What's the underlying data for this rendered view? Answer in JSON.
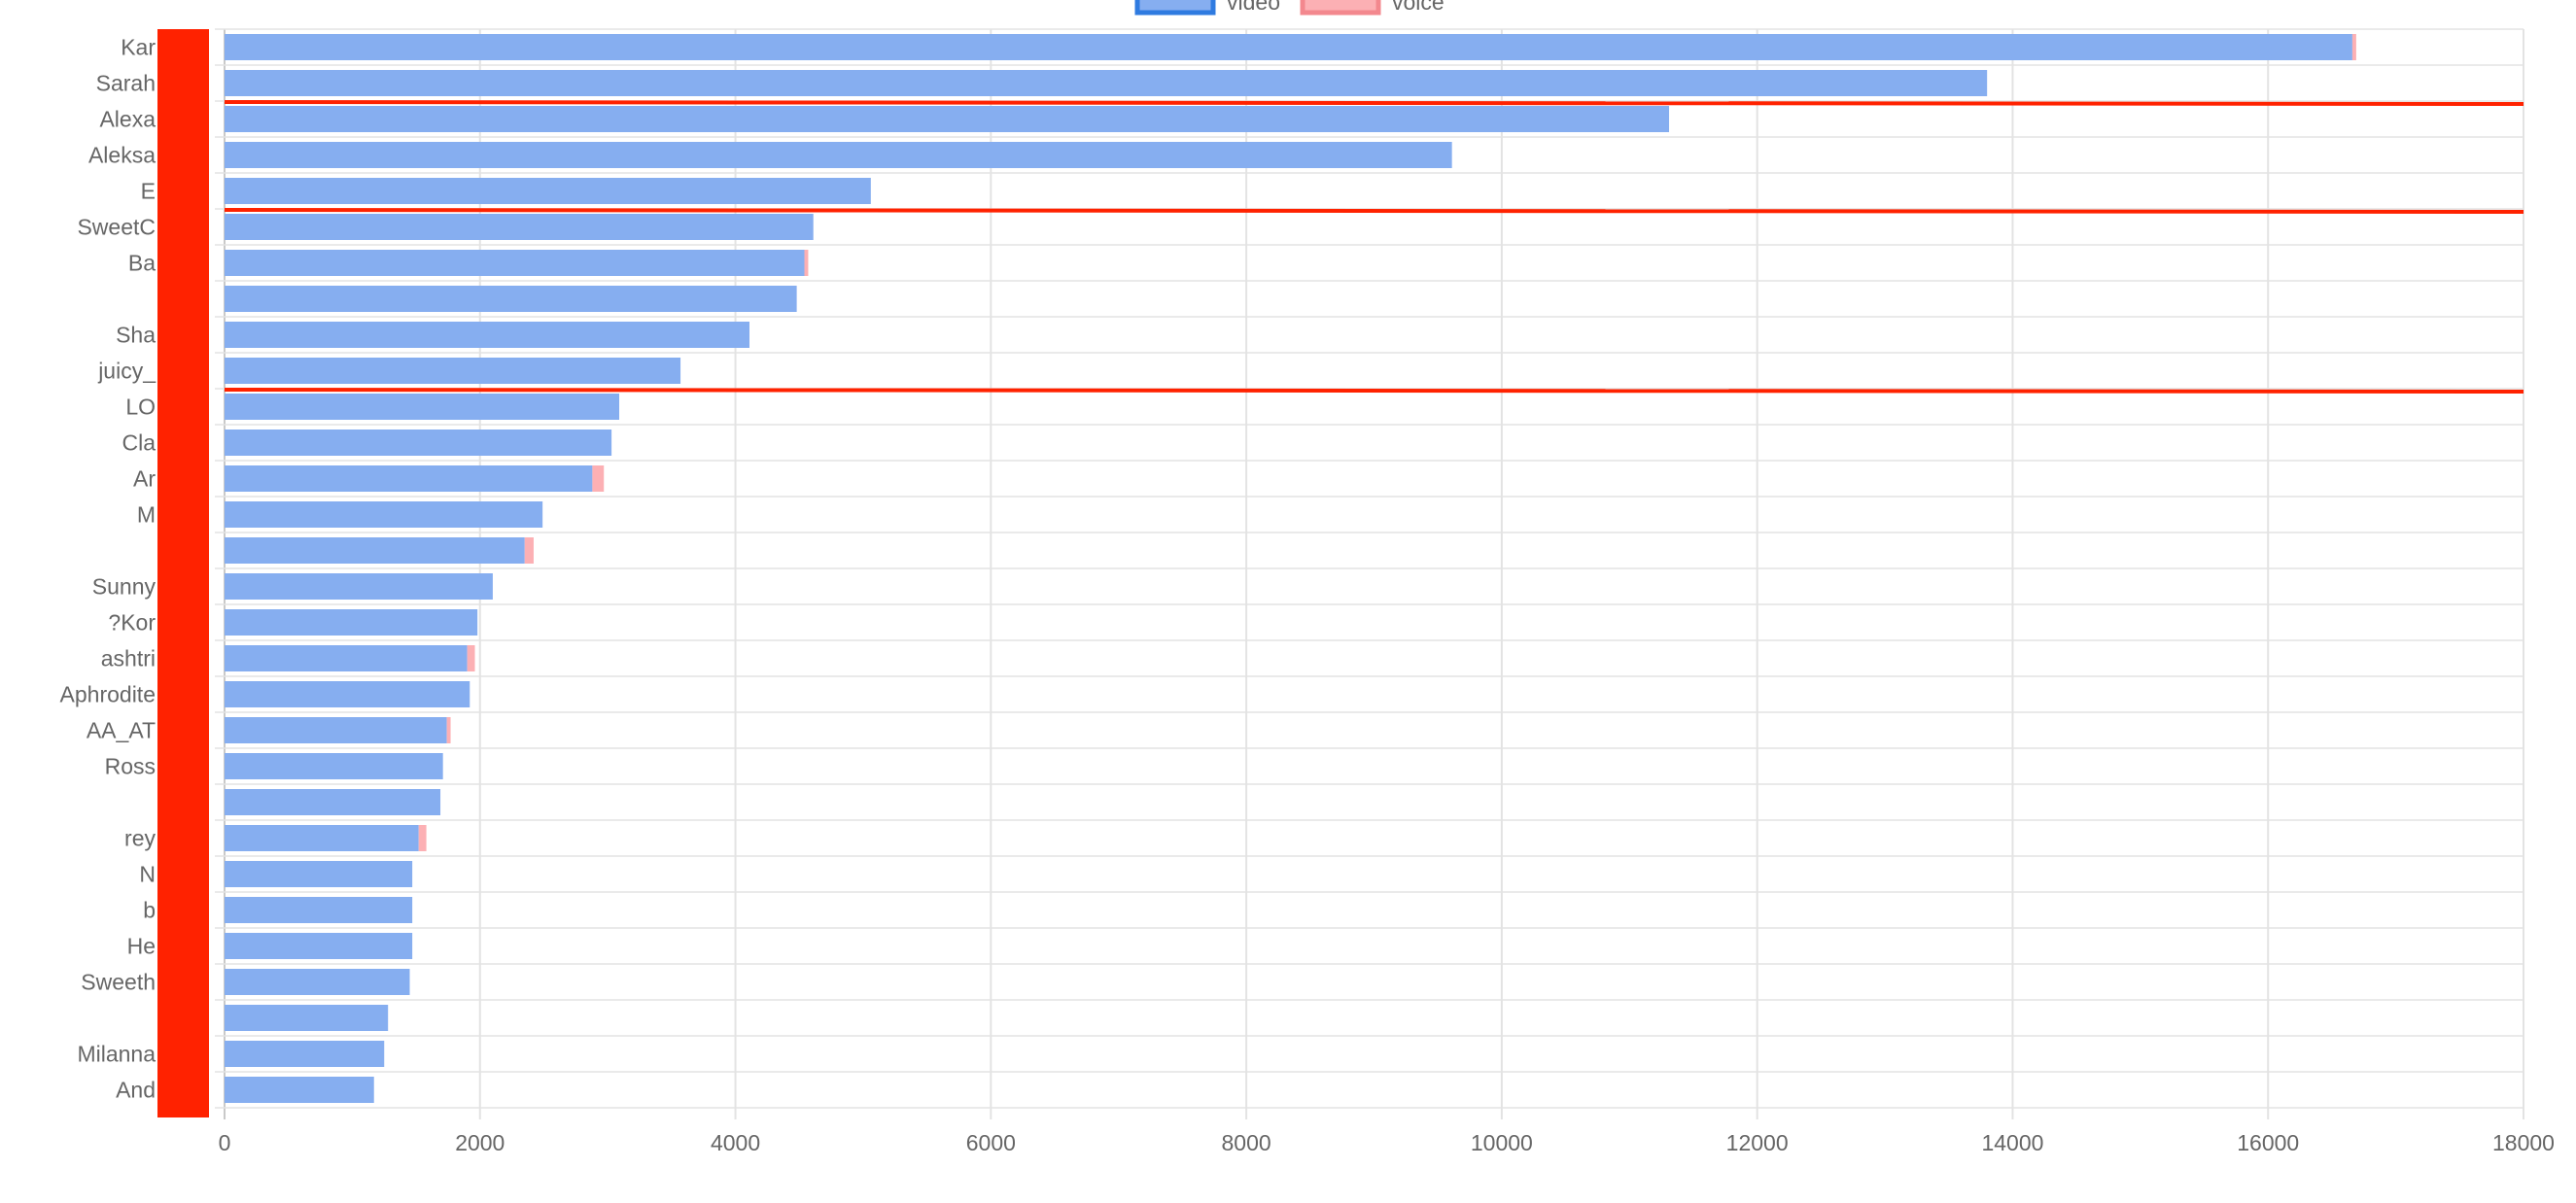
{
  "legend": [
    {
      "label": "video",
      "fill": "#86aef0",
      "stroke": "#2f7be0"
    },
    {
      "label": "voice",
      "fill": "#fcb0b4",
      "stroke": "#f3888e"
    }
  ],
  "colors": {
    "video": "#86aef0",
    "voice": "#fcb0b4",
    "grid": "#e3e3e3",
    "redaction": "#ff2200"
  },
  "chart_data": {
    "type": "bar",
    "orientation": "horizontal",
    "stacked": true,
    "categories": [
      "Kar",
      "Sarah",
      "Alexa",
      "Aleksa",
      "E",
      "SweetC",
      "Ba",
      "",
      "Sha",
      "juicy_",
      "LO",
      "Cla",
      "Ar",
      "M",
      "",
      "Sunny",
      "?Kor",
      "ashtri",
      "Aphrodite",
      "AA_AT",
      "Ross",
      "",
      "rey",
      "N",
      "b",
      "He",
      "Sweeth",
      "",
      "Milanna",
      "And"
    ],
    "series": [
      {
        "name": "video",
        "values": [
          16660,
          13800,
          11310,
          9610,
          5060,
          4610,
          4540,
          4480,
          4110,
          3570,
          3090,
          3030,
          2880,
          2490,
          2350,
          2100,
          1980,
          1900,
          1920,
          1740,
          1710,
          1690,
          1520,
          1470,
          1470,
          1470,
          1450,
          1280,
          1250,
          1170
        ]
      },
      {
        "name": "voice",
        "values": [
          30,
          0,
          0,
          0,
          0,
          0,
          30,
          0,
          0,
          0,
          0,
          0,
          90,
          0,
          70,
          0,
          0,
          60,
          0,
          30,
          0,
          0,
          60,
          0,
          0,
          0,
          0,
          0,
          0,
          0
        ]
      }
    ],
    "xlim": [
      0,
      18000
    ],
    "xticks": [
      0,
      2000,
      4000,
      6000,
      8000,
      10000,
      12000,
      14000,
      16000,
      18000
    ],
    "grid": true,
    "legend_position": "top-center"
  },
  "annotations": {
    "redaction_block": true,
    "red_rule_after_rows": [
      1,
      4,
      9
    ]
  }
}
